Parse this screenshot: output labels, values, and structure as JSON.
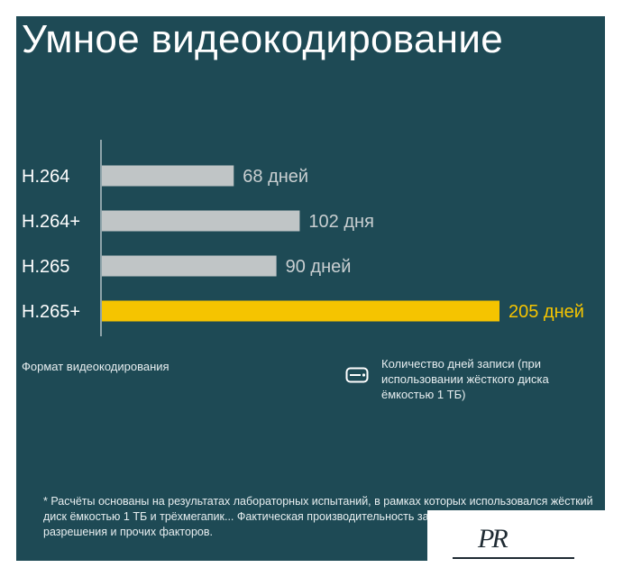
{
  "title": "Умное видеокодирование",
  "axis_title": "Формат видеокодирования",
  "legend": {
    "icon": "hdd-icon",
    "text": "Количество дней записи (при использовании жёсткого диска ёмкостью 1 ТБ)"
  },
  "footnote": "* Расчёты основаны на результатах лабораторных испытаний, в рамках которых использовался жёсткий диск ёмкостью 1 ТБ и трёхмегапик... Фактическая производительность зависит от количества з... разрешения и прочих факторов.",
  "logo_text": "PR",
  "colors": {
    "background": "#1e4a55",
    "bar_default": "#c0c5c6",
    "bar_highlight": "#f5c400",
    "text": "#ffffff",
    "value_label": "#c9cfd1"
  },
  "chart_data": {
    "type": "bar",
    "orientation": "horizontal",
    "title": "Умное видеокодирование",
    "xlabel": "Количество дней записи (при использовании жёсткого диска ёмкостью 1 ТБ)",
    "ylabel": "Формат видеокодирования",
    "categories": [
      "H.264",
      "H.264+",
      "H.265",
      "H.265+"
    ],
    "values": [
      68,
      102,
      90,
      205
    ],
    "value_labels": [
      "68 дней",
      "102 дня",
      "90 дней",
      "205 дней"
    ],
    "highlight_index": 3,
    "xlim": [
      0,
      205
    ],
    "grid": false
  }
}
